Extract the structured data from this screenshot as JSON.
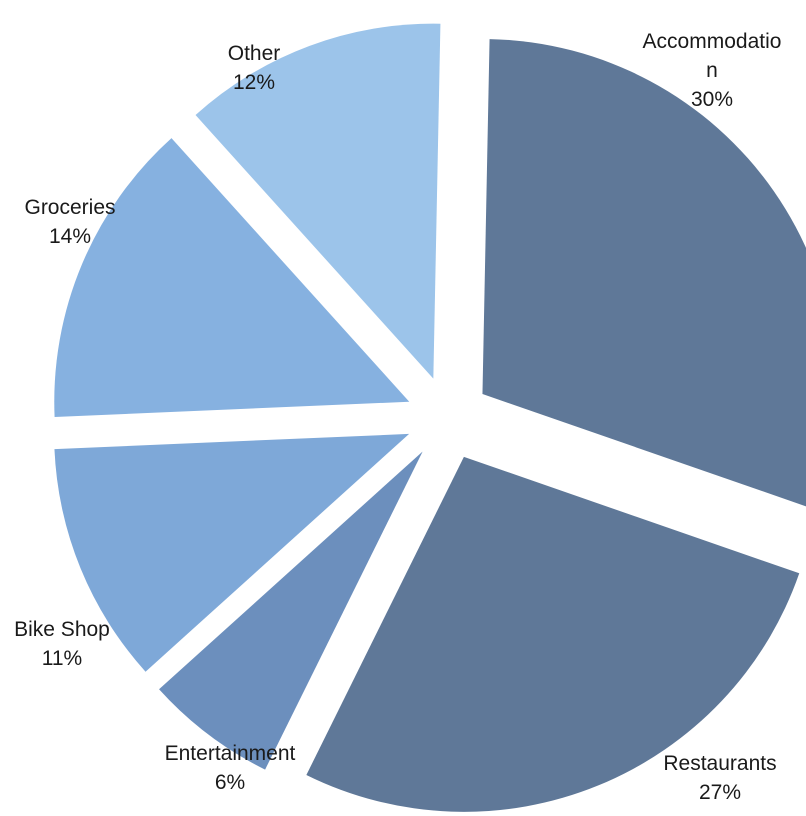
{
  "chart_data": {
    "type": "pie",
    "title": "",
    "categories": [
      "Accommodation",
      "Restaurants",
      "Entertainment",
      "Bike Shop",
      "Groceries",
      "Other"
    ],
    "values": [
      30,
      27,
      6,
      11,
      14,
      12
    ],
    "unit": "%",
    "labels": [
      {
        "lines": [
          "Accommodatio",
          "n"
        ],
        "pct": "30%"
      },
      {
        "lines": [
          "Restaurants"
        ],
        "pct": "27%"
      },
      {
        "lines": [
          "Entertainment"
        ],
        "pct": "6%"
      },
      {
        "lines": [
          "Bike Shop"
        ],
        "pct": "11%"
      },
      {
        "lines": [
          "Groceries"
        ],
        "pct": "14%"
      },
      {
        "lines": [
          "Other"
        ],
        "pct": "12%"
      }
    ],
    "colors": [
      "#5f7898",
      "#5f7898",
      "#6c8fbd",
      "#7ea8d8",
      "#86b1e0",
      "#9cc4ea"
    ],
    "exploded": true,
    "legend": "none"
  }
}
